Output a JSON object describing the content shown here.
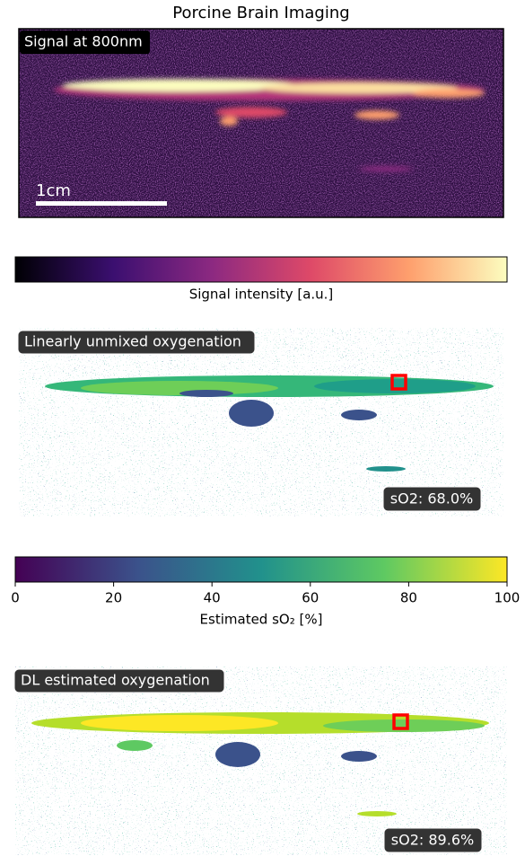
{
  "chart_data": {
    "type": "image",
    "title": "Porcine Brain Imaging",
    "panels": [
      {
        "label": "Signal at 800nm",
        "scale_bar": "1cm"
      },
      {
        "label": "Linearly unmixed oxygenation",
        "annotation": "sO2: 68.0%"
      },
      {
        "label": "DL estimated oxygenation",
        "annotation": "sO2: 89.6%"
      }
    ],
    "colorbars": [
      {
        "label": "Signal intensity [a.u.]",
        "cmap": "magma"
      },
      {
        "label": "Estimated sO₂ [%]",
        "cmap": "viridis",
        "xlim": [
          0,
          100
        ],
        "xticks": [
          0,
          20,
          40,
          60,
          80,
          100
        ]
      }
    ]
  }
}
